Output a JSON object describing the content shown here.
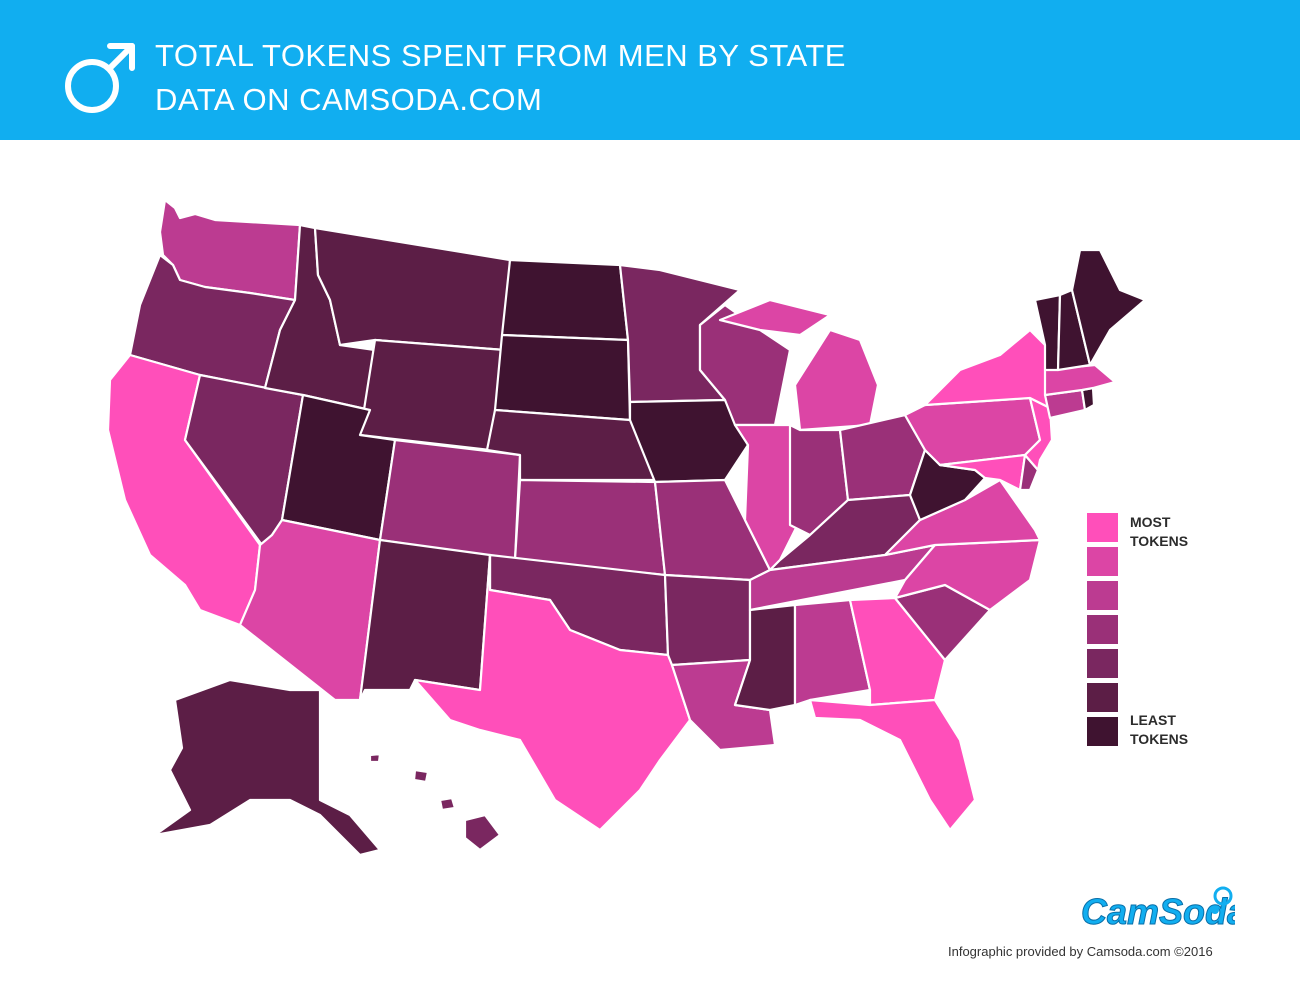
{
  "header": {
    "title": "TOTAL TOKENS SPENT FROM MEN BY STATE",
    "subtitle": "DATA ON CAMSODA.COM",
    "icon": "male-symbol-icon",
    "background_color": "#11aef0"
  },
  "legend": {
    "most_label_line1": "MOST",
    "most_label_line2": "TOKENS",
    "least_label_line1": "LEAST",
    "least_label_line2": "TOKENS",
    "scale_colors": [
      "#ff4fba",
      "#dc45a5",
      "#bc3b91",
      "#9a3078",
      "#7a2760",
      "#5c1e46",
      "#3f1330"
    ]
  },
  "map": {
    "description_levels": "1 = most tokens, 7 = least tokens",
    "states": {
      "WA": 3,
      "OR": 5,
      "CA": 1,
      "NV": 5,
      "ID": 6,
      "MT": 6,
      "WY": 6,
      "UT": 7,
      "AZ": 2,
      "CO": 4,
      "NM": 6,
      "ND": 7,
      "SD": 7,
      "NE": 6,
      "KS": 4,
      "OK": 5,
      "TX": 1,
      "MN": 5,
      "IA": 7,
      "MO": 4,
      "AR": 5,
      "LA": 3,
      "WI": 4,
      "IL": 2,
      "MI": 2,
      "IN": 4,
      "OH": 4,
      "KY": 5,
      "TN": 3,
      "MS": 6,
      "AL": 3,
      "GA": 1,
      "FL": 1,
      "SC": 4,
      "NC": 2,
      "VA": 2,
      "WV": 7,
      "MD": 1,
      "DE": 4,
      "PA": 2,
      "NJ": 1,
      "NY": 1,
      "CT": 3,
      "RI": 7,
      "MA": 2,
      "VT": 7,
      "NH": 7,
      "ME": 7,
      "AK": 6,
      "HI": 5
    }
  },
  "footer": {
    "credit": "Infographic provided by Camsoda.com ©2016"
  },
  "logo": {
    "text": "CamSoda",
    "color": "#11aef0"
  }
}
